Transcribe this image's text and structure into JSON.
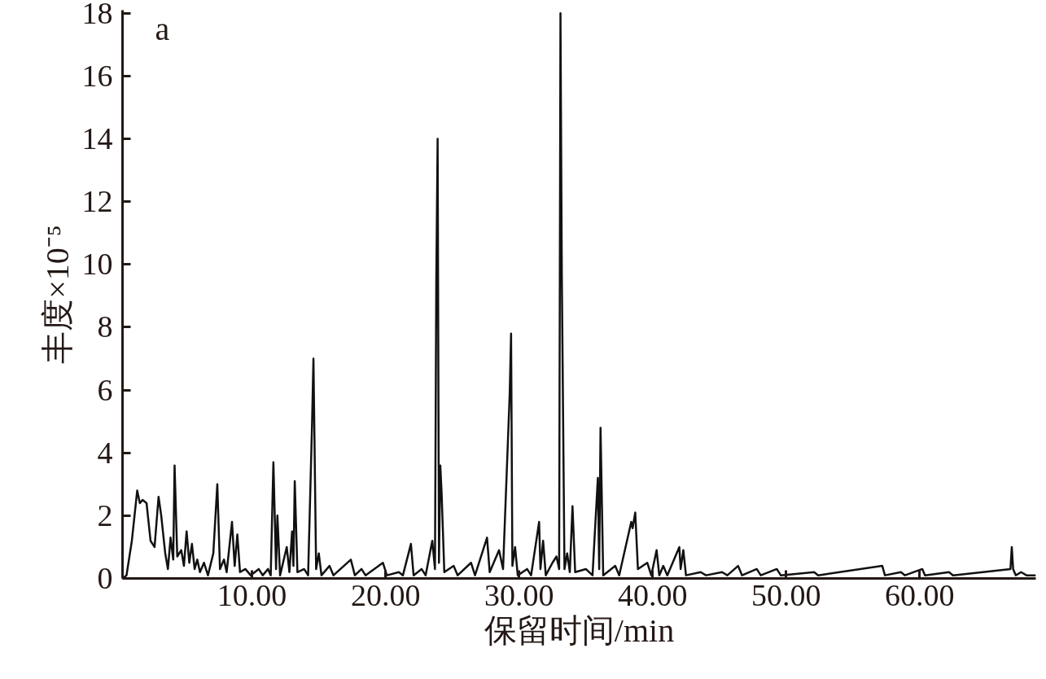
{
  "chart_data": {
    "type": "line",
    "xlabel": "保留时间/min",
    "ylabel": "丰度×10⁻⁵",
    "annotations": [
      "a"
    ],
    "xlim": [
      0.3,
      68.7
    ],
    "ylim": [
      0,
      18.1
    ],
    "xticks": [
      {
        "value": 10,
        "label": "10.00"
      },
      {
        "value": 20,
        "label": "20.00"
      },
      {
        "value": 30,
        "label": "30.00"
      },
      {
        "value": 40,
        "label": "40.00"
      },
      {
        "value": 50,
        "label": "50.00"
      },
      {
        "value": 60,
        "label": "60.00"
      }
    ],
    "yticks": [
      0,
      2,
      4,
      6,
      8,
      10,
      12,
      14,
      16,
      18
    ],
    "grid": false,
    "marker": "none",
    "line_style": "solid",
    "series": [
      {
        "color": "#111111",
        "x": [
          0.3,
          0.6,
          1.0,
          1.4,
          1.6,
          1.8,
          2.1,
          2.4,
          2.7,
          3.0,
          3.2,
          3.5,
          3.7,
          3.9,
          4.1,
          4.2,
          4.4,
          4.7,
          4.9,
          5.1,
          5.3,
          5.5,
          5.7,
          5.9,
          6.1,
          6.4,
          6.7,
          7.1,
          7.4,
          7.6,
          7.9,
          8.1,
          8.5,
          8.7,
          8.9,
          9.1,
          9.5,
          9.9,
          10.5,
          10.8,
          11.2,
          11.4,
          11.6,
          11.8,
          11.9,
          12.1,
          12.6,
          12.8,
          13.0,
          13.1,
          13.2,
          13.4,
          13.9,
          14.2,
          14.5,
          14.6,
          14.8,
          15.0,
          15.2,
          15.8,
          16.1,
          17.4,
          17.7,
          18.2,
          18.5,
          19.8,
          20.1,
          21.0,
          21.3,
          21.9,
          22.1,
          22.7,
          23.0,
          23.5,
          23.7,
          23.8,
          23.9,
          24.0,
          24.1,
          24.2,
          24.4,
          25.1,
          25.4,
          26.4,
          26.7,
          27.6,
          27.8,
          28.5,
          28.8,
          29.3,
          29.4,
          29.5,
          29.7,
          29.9,
          30.6,
          30.9,
          31.5,
          31.6,
          31.8,
          32.0,
          32.5,
          32.8,
          33.0,
          33.1,
          33.2,
          33.4,
          33.6,
          33.8,
          34.0,
          34.2,
          35.0,
          35.5,
          35.9,
          36.0,
          36.1,
          36.3,
          37.2,
          37.5,
          38.4,
          38.5,
          38.7,
          38.9,
          39.6,
          39.9,
          40.3,
          40.5,
          40.8,
          41.1,
          42.0,
          42.1,
          42.3,
          42.5,
          43.6,
          44.0,
          45.2,
          45.6,
          46.4,
          46.7,
          47.8,
          48.1,
          49.3,
          49.6,
          52.1,
          52.4,
          57.2,
          57.4,
          58.6,
          58.9,
          60.2,
          60.4,
          62.2,
          62.5,
          66.8,
          66.9,
          67.0,
          67.2,
          67.6,
          68.0,
          68.7
        ],
        "values": [
          0,
          0.1,
          1.2,
          2.8,
          2.4,
          2.5,
          2.4,
          1.2,
          1.0,
          2.6,
          2.0,
          0.8,
          0.3,
          1.3,
          0.6,
          3.6,
          0.7,
          0.9,
          0.4,
          1.5,
          0.5,
          1.1,
          0.3,
          0.6,
          0.2,
          0.5,
          0.1,
          0.8,
          3.0,
          0.3,
          0.6,
          0.2,
          1.8,
          0.4,
          1.4,
          0.2,
          0.3,
          0.1,
          0.3,
          0.1,
          0.3,
          0.1,
          3.7,
          0.3,
          2.0,
          0.1,
          1.0,
          0.2,
          1.5,
          0.4,
          3.1,
          0.2,
          0.3,
          0.1,
          5.0,
          7.0,
          0.3,
          0.8,
          0.1,
          0.4,
          0.1,
          0.6,
          0.1,
          0.3,
          0.1,
          0.5,
          0.1,
          0.2,
          0.1,
          1.1,
          0.1,
          0.3,
          0.1,
          1.2,
          0.3,
          9.5,
          14.0,
          0.5,
          3.6,
          2.7,
          0.2,
          0.4,
          0.1,
          0.5,
          0.1,
          1.3,
          0.2,
          0.9,
          0.3,
          5.9,
          7.8,
          0.4,
          1.0,
          0.1,
          0.3,
          0.1,
          1.8,
          0.3,
          1.2,
          0.1,
          0.5,
          0.7,
          0.3,
          18.0,
          9.7,
          0.3,
          0.8,
          0.2,
          2.3,
          0.2,
          0.3,
          0.1,
          3.2,
          0.3,
          4.8,
          0.1,
          0.4,
          0.1,
          1.8,
          1.6,
          2.1,
          0.3,
          0.5,
          0.1,
          0.9,
          0.1,
          0.4,
          0.1,
          1.0,
          0.3,
          0.9,
          0.1,
          0.2,
          0.1,
          0.2,
          0.1,
          0.4,
          0.1,
          0.3,
          0.1,
          0.3,
          0.1,
          0.2,
          0.1,
          0.4,
          0.1,
          0.2,
          0.1,
          0.3,
          0.1,
          0.2,
          0.1,
          0.3,
          1.0,
          0.3,
          0.1,
          0.2,
          0.1,
          0.1
        ]
      }
    ]
  }
}
